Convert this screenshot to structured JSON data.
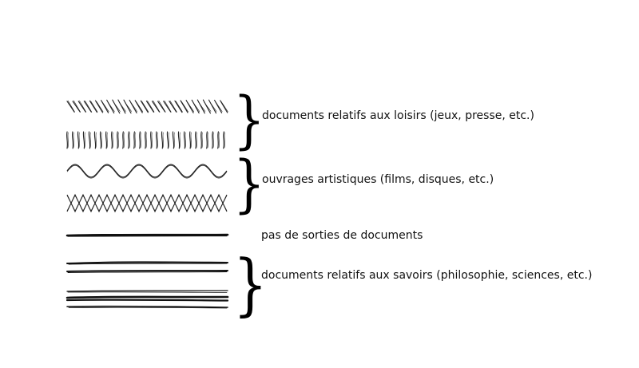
{
  "legend": {
    "entries": [
      {
        "key": "loisirs",
        "label": "documents relatifs aux loisirs (jeux, presse, etc.)",
        "patterns": [
          "slanted-hatch-icon",
          "vertical-ticks-icon"
        ],
        "brace": true
      },
      {
        "key": "artistiques",
        "label": "ouvrages artistiques (films, disques, etc.)",
        "patterns": [
          "wave-icon",
          "zigzag-lattice-icon"
        ],
        "brace": true
      },
      {
        "key": "pas",
        "label": "pas de sorties de documents",
        "patterns": [
          "single-line-icon"
        ],
        "brace": false
      },
      {
        "key": "savoirs",
        "label": "documents relatifs aux savoirs (philosophie, sciences, etc.)",
        "patterns": [
          "double-line-icon",
          "multi-line-icon"
        ],
        "brace": true
      }
    ],
    "brace_glyph": "}",
    "stroke_color": "#111111"
  }
}
